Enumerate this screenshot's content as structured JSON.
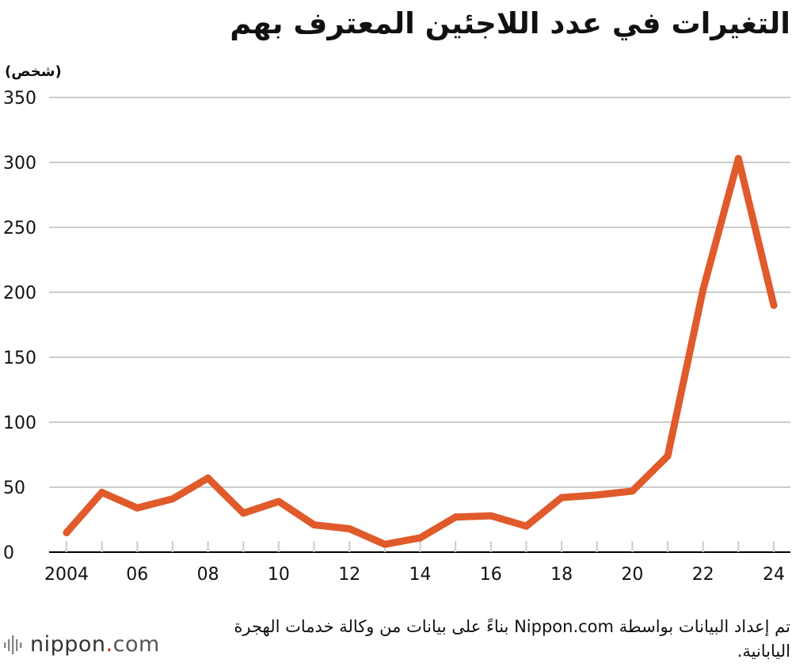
{
  "colors": {
    "line": "#e05a2b",
    "grid": "#cccccc",
    "axis": "#000000",
    "logo_dot": "#e30613"
  },
  "chart_data": {
    "type": "line",
    "title": "التغيرات في عدد اللاجئين المعترف بهم",
    "ylabel": "(شخص)",
    "xlabel": "",
    "ylim": [
      0,
      350
    ],
    "yticks": [
      0,
      50,
      100,
      150,
      200,
      250,
      300,
      350
    ],
    "grid": true,
    "x": [
      2004,
      2005,
      2006,
      2007,
      2008,
      2009,
      2010,
      2011,
      2012,
      2013,
      2014,
      2015,
      2016,
      2017,
      2018,
      2019,
      2020,
      2021,
      2022,
      2023,
      2024
    ],
    "xtick_labels": [
      "2004",
      "06",
      "08",
      "10",
      "12",
      "14",
      "16",
      "18",
      "20",
      "22",
      "24"
    ],
    "xtick_values": [
      2004,
      2006,
      2008,
      2010,
      2012,
      2014,
      2016,
      2018,
      2020,
      2022,
      2024
    ],
    "series": [
      {
        "values": [
          15,
          46,
          34,
          41,
          57,
          30,
          39,
          21,
          18,
          6,
          11,
          27,
          28,
          20,
          42,
          44,
          47,
          74,
          202,
          303,
          190
        ]
      }
    ]
  },
  "source_text": "تم إعداد البيانات بواسطة Nippon.com بناءً على بيانات من وكالة خدمات الهجرة اليابانية.",
  "logo": {
    "prefix": "nippon",
    "dot": ".",
    "suffix": "com"
  }
}
